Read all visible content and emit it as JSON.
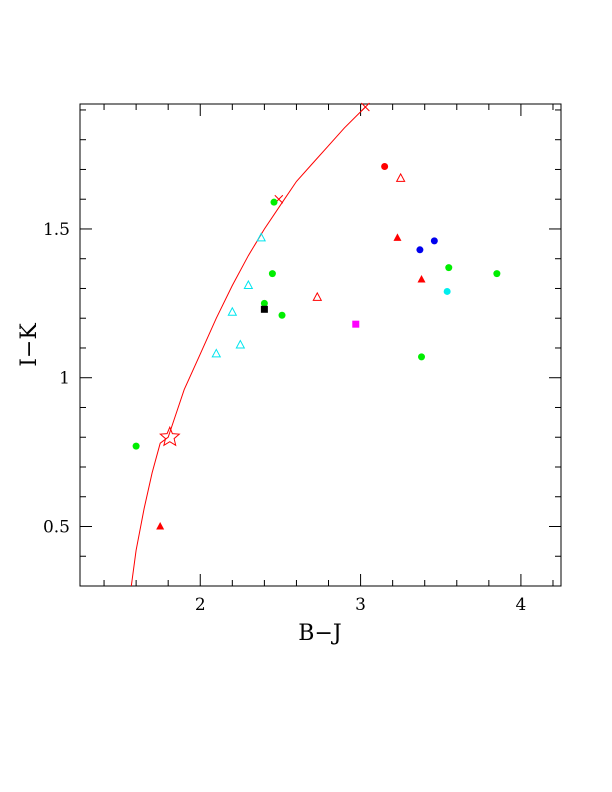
{
  "chart_data": {
    "type": "scatter",
    "xlabel": "B−J",
    "ylabel": "I−K",
    "xlim": [
      1.25,
      4.25
    ],
    "ylim": [
      0.3,
      1.92
    ],
    "xticks": [
      {
        "value": 2,
        "label": "2"
      },
      {
        "value": 3,
        "label": "3"
      },
      {
        "value": 4,
        "label": "4"
      }
    ],
    "yticks": [
      {
        "value": 0.5,
        "label": "0.5"
      },
      {
        "value": 1.0,
        "label": "1"
      },
      {
        "value": 1.5,
        "label": "1.5"
      }
    ],
    "x_minor_step": 0.2,
    "y_minor_step": 0.1,
    "grid": false,
    "curve": {
      "color": "#ff0000",
      "points": [
        [
          1.57,
          0.3
        ],
        [
          1.6,
          0.42
        ],
        [
          1.65,
          0.56
        ],
        [
          1.7,
          0.68
        ],
        [
          1.75,
          0.78
        ],
        [
          1.8,
          0.8
        ],
        [
          1.85,
          0.88
        ],
        [
          1.9,
          0.96
        ],
        [
          2.0,
          1.08
        ],
        [
          2.1,
          1.2
        ],
        [
          2.2,
          1.31
        ],
        [
          2.3,
          1.41
        ],
        [
          2.4,
          1.5
        ],
        [
          2.5,
          1.58
        ],
        [
          2.6,
          1.66
        ],
        [
          2.7,
          1.72
        ],
        [
          2.8,
          1.78
        ],
        [
          2.9,
          1.84
        ],
        [
          3.03,
          1.91
        ]
      ]
    },
    "curve_markers": [
      {
        "x": 1.81,
        "y": 0.8,
        "marker": "star",
        "color": "#ff0000"
      },
      {
        "x": 3.03,
        "y": 1.91,
        "marker": "cross",
        "color": "#ff0000"
      },
      {
        "x": 2.49,
        "y": 1.6,
        "marker": "cross",
        "color": "#ff0000"
      }
    ],
    "points": [
      {
        "x": 1.6,
        "y": 0.77,
        "marker": "circle",
        "color": "#00ee00"
      },
      {
        "x": 1.75,
        "y": 0.5,
        "marker": "triangle-filled",
        "color": "#ff0000"
      },
      {
        "x": 2.1,
        "y": 1.08,
        "marker": "triangle-open",
        "color": "#00e5ee"
      },
      {
        "x": 2.2,
        "y": 1.22,
        "marker": "triangle-open",
        "color": "#00e5ee"
      },
      {
        "x": 2.25,
        "y": 1.11,
        "marker": "triangle-open",
        "color": "#00e5ee"
      },
      {
        "x": 2.3,
        "y": 1.31,
        "marker": "triangle-open",
        "color": "#00e5ee"
      },
      {
        "x": 2.38,
        "y": 1.47,
        "marker": "triangle-open",
        "color": "#00e5ee"
      },
      {
        "x": 2.4,
        "y": 1.25,
        "marker": "circle",
        "color": "#00ee00"
      },
      {
        "x": 2.4,
        "y": 1.23,
        "marker": "square",
        "color": "#000000"
      },
      {
        "x": 2.45,
        "y": 1.35,
        "marker": "circle",
        "color": "#00ee00"
      },
      {
        "x": 2.46,
        "y": 1.59,
        "marker": "circle",
        "color": "#00ee00"
      },
      {
        "x": 2.51,
        "y": 1.21,
        "marker": "circle",
        "color": "#00ee00"
      },
      {
        "x": 2.73,
        "y": 1.27,
        "marker": "triangle-open",
        "color": "#ff0000"
      },
      {
        "x": 2.97,
        "y": 1.18,
        "marker": "square",
        "color": "#ff00ff"
      },
      {
        "x": 3.15,
        "y": 1.71,
        "marker": "circle",
        "color": "#ff0000"
      },
      {
        "x": 3.23,
        "y": 1.47,
        "marker": "triangle-filled",
        "color": "#ff0000"
      },
      {
        "x": 3.25,
        "y": 1.67,
        "marker": "triangle-open",
        "color": "#ff0000"
      },
      {
        "x": 3.37,
        "y": 1.43,
        "marker": "circle",
        "color": "#0000ee"
      },
      {
        "x": 3.38,
        "y": 1.33,
        "marker": "triangle-filled",
        "color": "#ff0000"
      },
      {
        "x": 3.38,
        "y": 1.07,
        "marker": "circle",
        "color": "#00ee00"
      },
      {
        "x": 3.46,
        "y": 1.46,
        "marker": "circle",
        "color": "#0000ee"
      },
      {
        "x": 3.54,
        "y": 1.29,
        "marker": "circle",
        "color": "#00eeee"
      },
      {
        "x": 3.55,
        "y": 1.37,
        "marker": "circle",
        "color": "#00ee00"
      },
      {
        "x": 3.85,
        "y": 1.35,
        "marker": "circle",
        "color": "#00ee00"
      }
    ]
  }
}
